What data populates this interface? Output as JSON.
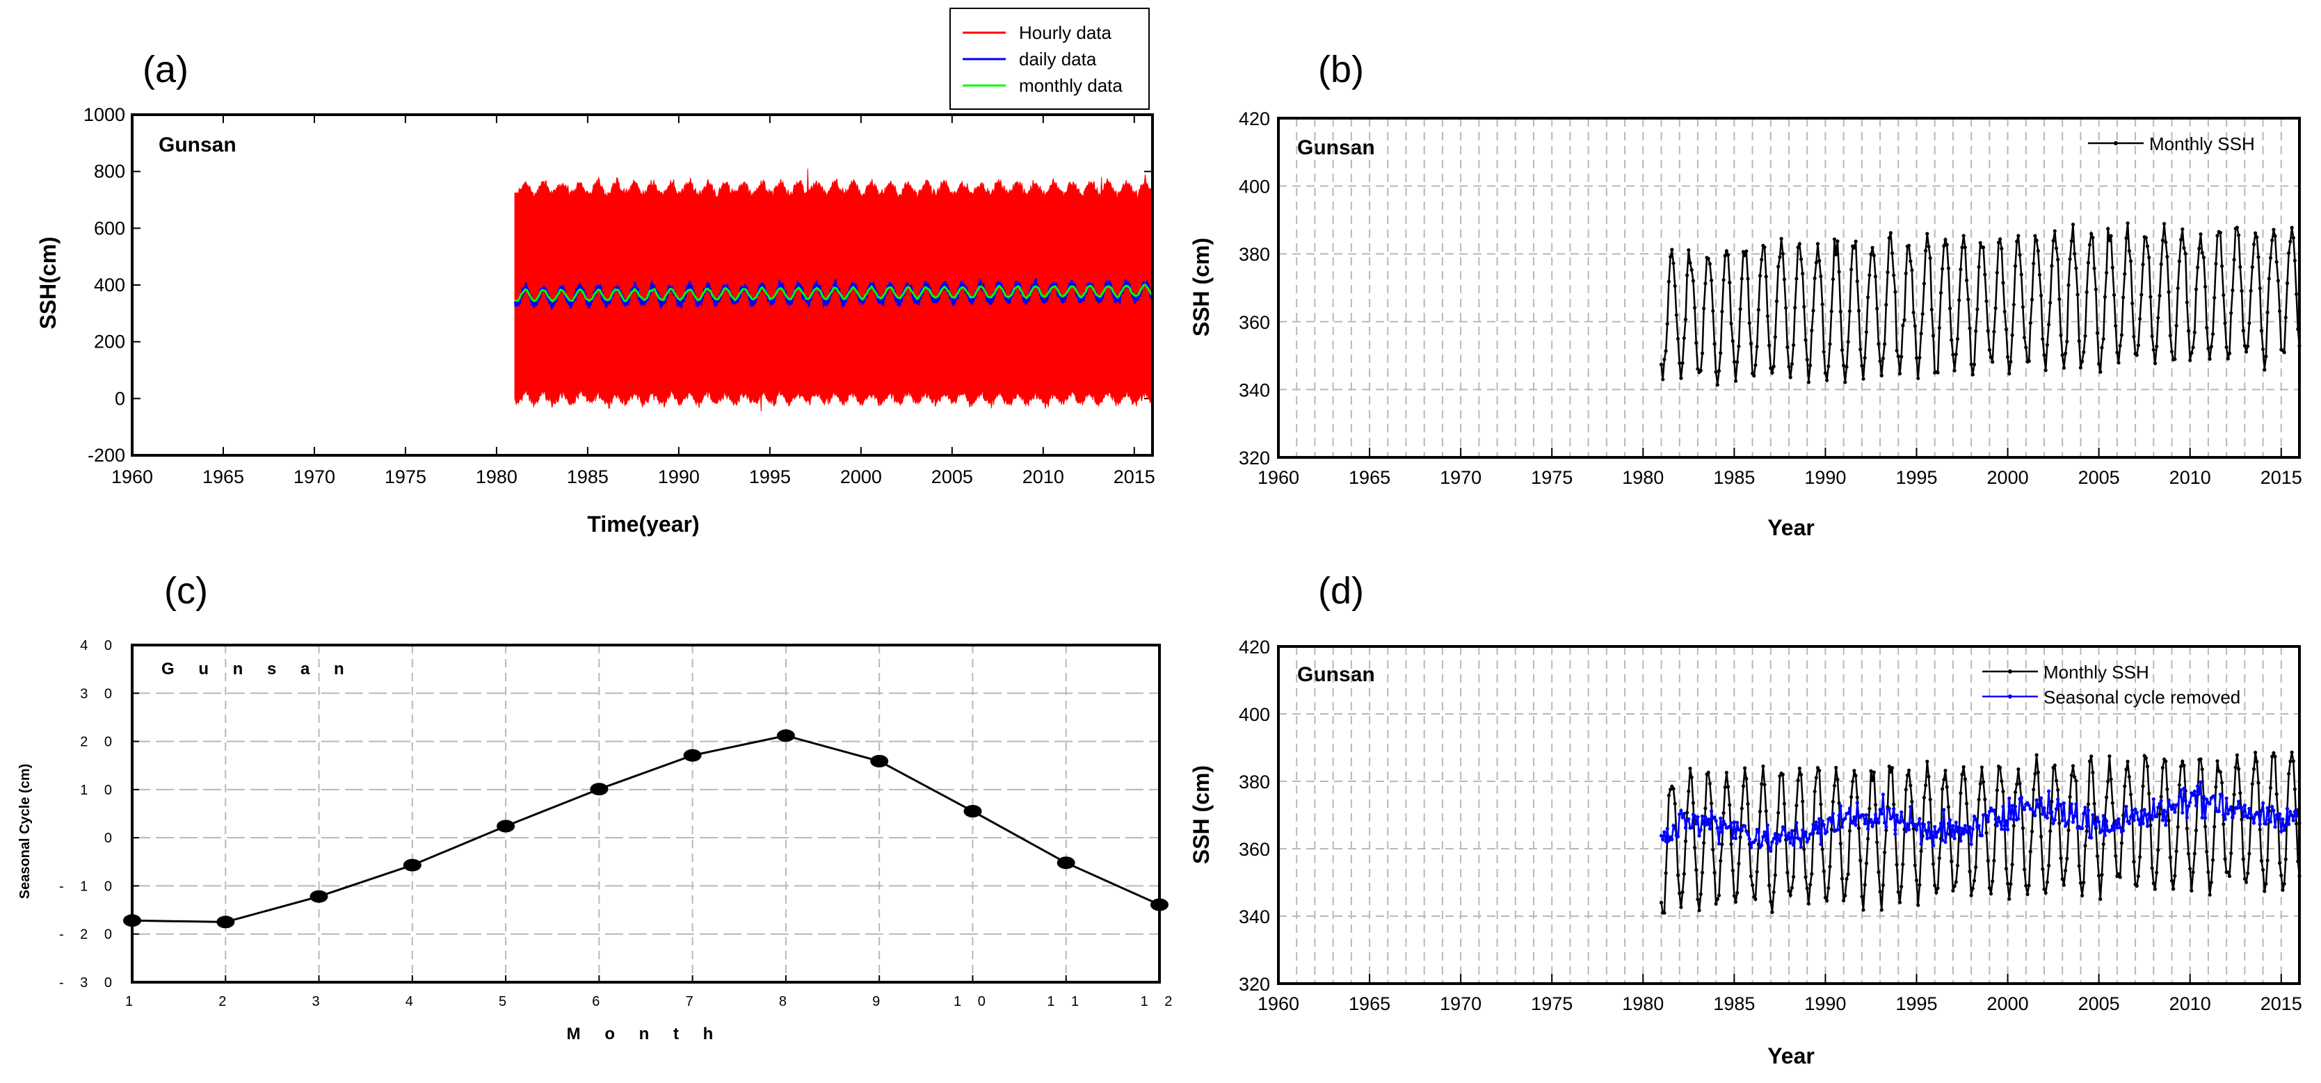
{
  "figure": {
    "panels": [
      {
        "id": "a",
        "label": "(a)",
        "location": "Gunsan",
        "xlabel": "Time(year)",
        "ylabel": "SSH(cm)"
      },
      {
        "id": "b",
        "label": "(b)",
        "location": "Gunsan",
        "xlabel": "Year",
        "ylabel": "SSH (cm)"
      },
      {
        "id": "c",
        "label": "(c)",
        "location": "G u n s a n",
        "xlabel": "M o n t h",
        "ylabel": "Seasonal Cycle (cm)"
      },
      {
        "id": "d",
        "label": "(d)",
        "location": "Gunsan",
        "xlabel": "Year",
        "ylabel": "SSH (cm)"
      }
    ]
  },
  "chart_data": [
    {
      "panel": "a",
      "type": "line",
      "title": "",
      "location_label": "Gunsan",
      "xlabel": "Time(year)",
      "ylabel": "SSH(cm)",
      "xlim": [
        1960,
        2016
      ],
      "ylim": [
        -200,
        1000
      ],
      "xticks": [
        1960,
        1965,
        1970,
        1975,
        1980,
        1985,
        1990,
        1995,
        2000,
        2005,
        2010,
        2015
      ],
      "yticks": [
        -200,
        0,
        200,
        400,
        600,
        800,
        1000
      ],
      "grid": false,
      "legend_position": "above-right",
      "series": [
        {
          "name": "Hourly data",
          "color": "#ff0000",
          "kind": "band",
          "x_range": [
            1981.0,
            2016.0
          ],
          "low": 0,
          "high": 740,
          "peaks": [
            [
              1997.1,
              810
            ],
            [
              2015.6,
              790
            ],
            [
              2013.2,
              780
            ]
          ],
          "troughs": [
            [
              1994.5,
              -45
            ],
            [
              2010.3,
              -30
            ]
          ]
        },
        {
          "name": "daily data",
          "color": "#0000ff",
          "kind": "seasonal",
          "x_range": [
            1981.0,
            2016.0
          ],
          "base": 360,
          "trend_per_year": 0.5,
          "amplitude": 30,
          "noise": 14
        },
        {
          "name": "monthly data",
          "color": "#00ff00",
          "kind": "seasonal",
          "x_range": [
            1981.0,
            2016.0
          ],
          "base": 362,
          "trend_per_year": 0.5,
          "amplitude": 19,
          "noise": 3
        }
      ]
    },
    {
      "panel": "b",
      "type": "line",
      "title": "",
      "location_label": "Gunsan",
      "xlabel": "Year",
      "ylabel": "SSH (cm)",
      "xlim": [
        1960,
        2016
      ],
      "ylim": [
        320,
        420
      ],
      "xticks": [
        1960,
        1965,
        1970,
        1975,
        1980,
        1985,
        1990,
        1995,
        2000,
        2005,
        2010,
        2015
      ],
      "yticks": [
        320,
        340,
        360,
        380,
        400,
        420
      ],
      "grid": true,
      "legend_position": "top-right",
      "series": [
        {
          "name": "Monthly SSH",
          "color": "#000000",
          "kind": "monthly",
          "start": 1981.0,
          "end": 2016.0,
          "base": 362,
          "trend_per_year": 0.2,
          "amplitude": 19,
          "noise": 3,
          "marker": "dot"
        }
      ]
    },
    {
      "panel": "c",
      "type": "line",
      "title": "",
      "location_label": "G u n s a n",
      "xlabel": "M o n t h",
      "ylabel": "Seasonal Cycle (cm)",
      "x": [
        1,
        2,
        3,
        4,
        5,
        6,
        7,
        8,
        9,
        10,
        11,
        12
      ],
      "values": [
        -17.2,
        -17.5,
        -12.2,
        -5.7,
        2.4,
        10.1,
        17.1,
        21.2,
        15.9,
        5.5,
        -5.2,
        -13.9
      ],
      "xlim": [
        1,
        12
      ],
      "ylim": [
        -30,
        40
      ],
      "xtick_labels": [
        "1",
        "2",
        "3",
        "4",
        "5",
        "6",
        "7",
        "8",
        "9",
        "1 0",
        "1 1",
        "1 2"
      ],
      "ytick_values": [
        -30,
        -20,
        -10,
        0,
        10,
        20,
        30,
        40
      ],
      "ytick_labels": [
        "- 3 0",
        "- 2 0",
        "- 1 0",
        "0",
        "1 0",
        "2 0",
        "3 0",
        "4 0"
      ],
      "grid": true,
      "color": "#000000"
    },
    {
      "panel": "d",
      "type": "line",
      "title": "",
      "location_label": "Gunsan",
      "xlabel": "Year",
      "ylabel": "SSH (cm)",
      "xlim": [
        1960,
        2016
      ],
      "ylim": [
        320,
        420
      ],
      "xticks": [
        1960,
        1965,
        1970,
        1975,
        1980,
        1985,
        1990,
        1995,
        2000,
        2005,
        2010,
        2015
      ],
      "yticks": [
        320,
        340,
        360,
        380,
        400,
        420
      ],
      "grid": true,
      "legend_position": "top-right",
      "series": [
        {
          "name": "Monthly SSH",
          "color": "#000000",
          "kind": "monthly",
          "start": 1981.0,
          "end": 2016.0,
          "base": 362,
          "trend_per_year": 0.2,
          "amplitude": 19,
          "noise": 3,
          "marker": "dot"
        },
        {
          "name": "Seasonal cycle removed",
          "color": "#0000ff",
          "kind": "anomaly",
          "start": 1981.0,
          "end": 2016.0,
          "base": 364,
          "trend_per_year": 0.25,
          "amplitude": 0,
          "noise": 4,
          "marker": "dot"
        }
      ]
    }
  ]
}
